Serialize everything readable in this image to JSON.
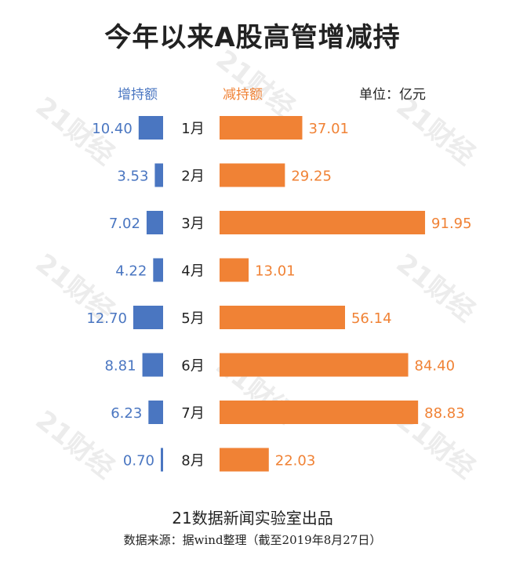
{
  "title": "今年以来A股高管增减持",
  "legend": {
    "increase_label": "增持额",
    "decrease_label": "减持额",
    "unit_label": "单位：亿元"
  },
  "watermark": "21财经",
  "footer": {
    "producer": "21数据新闻实验室出品",
    "source": "数据来源：据wind整理（截至2019年8月27日）"
  },
  "colors": {
    "increase": "#4a76c1",
    "decrease": "#f08235"
  },
  "chart_data": {
    "type": "bar",
    "categories": [
      "1月",
      "2月",
      "3月",
      "4月",
      "5月",
      "6月",
      "7月",
      "8月"
    ],
    "series": [
      {
        "name": "增持额",
        "values": [
          10.4,
          3.53,
          7.02,
          4.22,
          12.7,
          8.81,
          6.23,
          0.7
        ]
      },
      {
        "name": "减持额",
        "values": [
          37.01,
          29.25,
          91.95,
          13.01,
          56.14,
          84.4,
          88.83,
          22.03
        ]
      }
    ],
    "title": "今年以来A股高管增减持",
    "xlabel": "",
    "ylabel": "",
    "unit": "亿元",
    "grid": false,
    "legend": "top"
  }
}
